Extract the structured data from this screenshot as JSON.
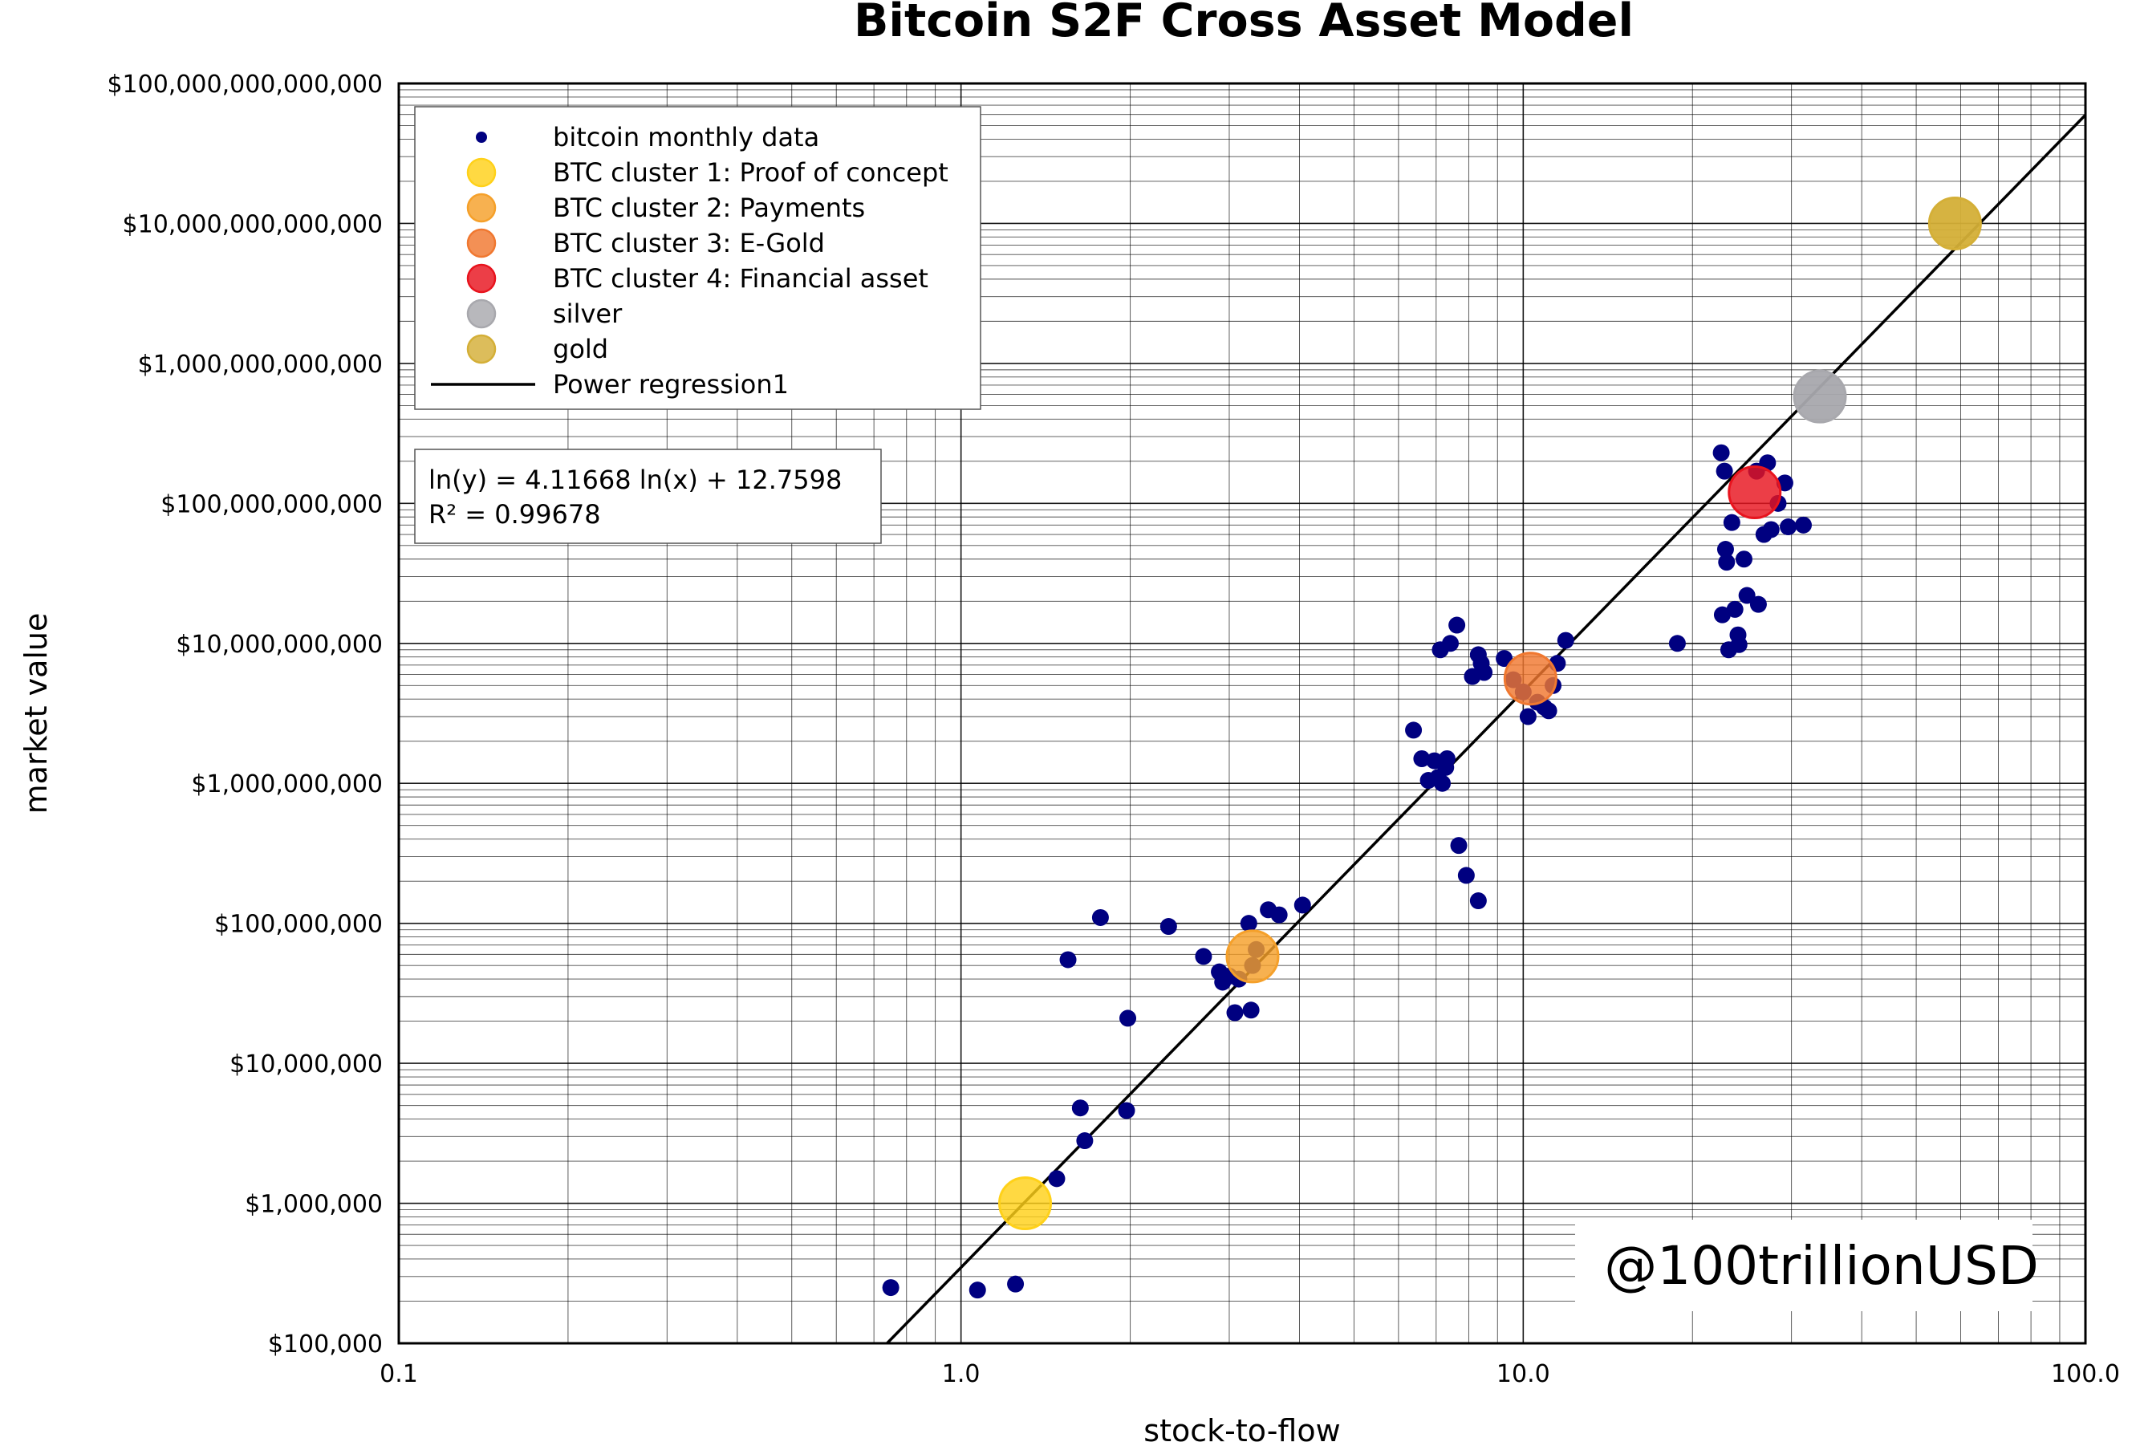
{
  "chart_data": {
    "type": "scatter",
    "title": "Bitcoin S2F Cross Asset Model",
    "xlabel": "stock-to-flow",
    "ylabel": "market value",
    "x_scale": "log",
    "y_scale": "log",
    "xlim": [
      0.1,
      100.0
    ],
    "ylim": [
      100000,
      100000000000000
    ],
    "x_ticks": [
      0.1,
      1.0,
      10.0,
      100.0
    ],
    "x_tick_labels": [
      "0.1",
      "1.0",
      "10.0",
      "100.0"
    ],
    "y_ticks": [
      100000,
      1000000,
      10000000,
      100000000,
      1000000000,
      10000000000,
      100000000000,
      1000000000000,
      10000000000000,
      100000000000000
    ],
    "y_tick_labels": [
      "$100,000",
      "$1,000,000",
      "$10,000,000",
      "$100,000,000",
      "$1,000,000,000",
      "$10,000,000,000",
      "$100,000,000,000",
      "$1,000,000,000,000",
      "$10,000,000,000,000",
      "$100,000,000,000,000"
    ],
    "grid": true,
    "legend_position": "top-left",
    "series": [
      {
        "name": "bitcoin monthly data",
        "kind": "points",
        "color": "#000080",
        "points": [
          [
            0.75,
            250000
          ],
          [
            1.07,
            240000
          ],
          [
            1.25,
            265000
          ],
          [
            1.48,
            1500000
          ],
          [
            1.63,
            4800000
          ],
          [
            1.66,
            2800000
          ],
          [
            1.97,
            4600000
          ],
          [
            1.55,
            55000000
          ],
          [
            1.77,
            110000000
          ],
          [
            1.98,
            21000000
          ],
          [
            2.34,
            95000000
          ],
          [
            2.7,
            58000000
          ],
          [
            2.88,
            45000000
          ],
          [
            2.92,
            38000000
          ],
          [
            3.07,
            23000000
          ],
          [
            3.12,
            40000000
          ],
          [
            3.25,
            100000000
          ],
          [
            3.28,
            24000000
          ],
          [
            3.35,
            65000000
          ],
          [
            3.52,
            125000000
          ],
          [
            3.68,
            115000000
          ],
          [
            4.05,
            135000000
          ],
          [
            3.3,
            50000000
          ],
          [
            3.0,
            42000000
          ],
          [
            6.38,
            2400000000
          ],
          [
            6.6,
            1500000000
          ],
          [
            6.78,
            1050000000
          ],
          [
            6.95,
            1450000000
          ],
          [
            7.05,
            1100000000
          ],
          [
            7.18,
            1000000000
          ],
          [
            7.32,
            1500000000
          ],
          [
            7.28,
            1300000000
          ],
          [
            7.12,
            9000000000
          ],
          [
            7.42,
            10000000000
          ],
          [
            7.62,
            13500000000
          ],
          [
            7.68,
            360000000
          ],
          [
            7.92,
            220000000
          ],
          [
            8.32,
            145000000
          ],
          [
            8.12,
            5800000000
          ],
          [
            8.32,
            8300000000
          ],
          [
            8.42,
            7200000000
          ],
          [
            8.52,
            6200000000
          ],
          [
            9.25,
            7800000000
          ],
          [
            9.6,
            5500000000
          ],
          [
            10.0,
            4500000000
          ],
          [
            10.2,
            3000000000
          ],
          [
            10.6,
            3800000000
          ],
          [
            10.9,
            3500000000
          ],
          [
            11.1,
            3300000000
          ],
          [
            11.5,
            7200000000
          ],
          [
            11.9,
            10500000000
          ],
          [
            11.3,
            5000000000
          ],
          [
            18.8,
            10000000000
          ],
          [
            22.5,
            230000000000
          ],
          [
            22.8,
            170000000000
          ],
          [
            22.9,
            47000000000
          ],
          [
            23.0,
            38000000000
          ],
          [
            22.6,
            16000000000
          ],
          [
            23.2,
            9000000000
          ],
          [
            23.8,
            17500000000
          ],
          [
            24.1,
            11500000000
          ],
          [
            23.5,
            73000000000
          ],
          [
            24.7,
            40000000000
          ],
          [
            25.0,
            22000000000
          ],
          [
            26.2,
            19000000000
          ],
          [
            26.0,
            170000000000
          ],
          [
            26.8,
            60000000000
          ],
          [
            27.6,
            65000000000
          ],
          [
            28.4,
            100000000000
          ],
          [
            29.2,
            140000000000
          ],
          [
            29.6,
            68000000000
          ],
          [
            31.5,
            70000000000
          ],
          [
            27.2,
            195000000000
          ],
          [
            24.2,
            9800000000
          ]
        ]
      },
      {
        "name": "BTC cluster 1: Proof of concept",
        "kind": "cluster",
        "color": "#FFD119",
        "points": [
          [
            1.3,
            1000000
          ]
        ]
      },
      {
        "name": "BTC cluster 2: Payments",
        "kind": "cluster",
        "color": "#F5A02A",
        "points": [
          [
            3.3,
            58000000
          ]
        ]
      },
      {
        "name": "BTC cluster 3: E-Gold",
        "kind": "cluster",
        "color": "#F07830",
        "points": [
          [
            10.3,
            5600000000
          ]
        ]
      },
      {
        "name": "BTC cluster 4: Financial asset",
        "kind": "cluster",
        "color": "#E8141E",
        "points": [
          [
            25.8,
            120000000000
          ]
        ]
      },
      {
        "name": "silver",
        "kind": "asset",
        "color": "#A8A8AD",
        "points": [
          [
            33.7,
            580000000000
          ]
        ]
      },
      {
        "name": "gold",
        "kind": "asset",
        "color": "#D4AF37",
        "points": [
          [
            58.6,
            10000000000000
          ]
        ]
      },
      {
        "name": "Power regression1",
        "kind": "line",
        "color": "#000000",
        "slope": 4.11668,
        "intercept": 12.7598
      }
    ],
    "annotations": {
      "equation": "ln(y) = 4.11668 ln(x) + 12.7598",
      "r_squared": "R² = 0.99678"
    }
  },
  "watermark": "@100trillionUSD"
}
